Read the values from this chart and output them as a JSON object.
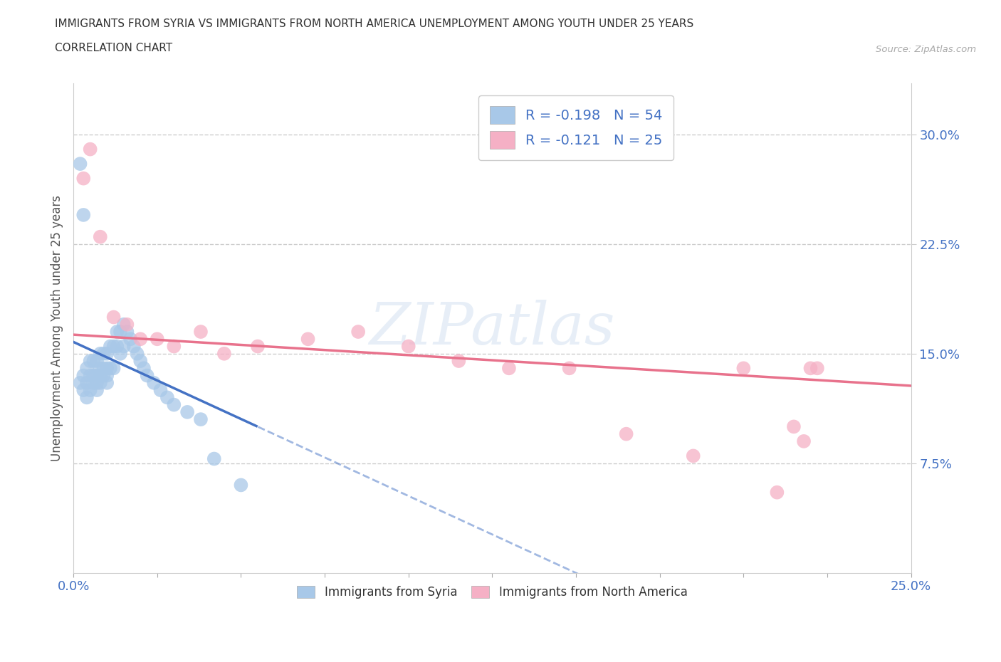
{
  "title_line1": "IMMIGRANTS FROM SYRIA VS IMMIGRANTS FROM NORTH AMERICA UNEMPLOYMENT AMONG YOUTH UNDER 25 YEARS",
  "title_line2": "CORRELATION CHART",
  "source": "Source: ZipAtlas.com",
  "xlabel_bottom_syria": "Immigrants from Syria",
  "xlabel_bottom_na": "Immigrants from North America",
  "ylabel": "Unemployment Among Youth under 25 years",
  "xlim": [
    0.0,
    0.25
  ],
  "ylim": [
    0.0,
    0.335
  ],
  "xtick_positions": [
    0.0,
    0.025,
    0.05,
    0.075,
    0.1,
    0.125,
    0.15,
    0.175,
    0.2,
    0.225,
    0.25
  ],
  "xtick_labels": [
    "0.0%",
    "",
    "",
    "",
    "",
    "",
    "",
    "",
    "",
    "",
    "25.0%"
  ],
  "ytick_positions": [
    0.075,
    0.15,
    0.225,
    0.3
  ],
  "ytick_labels": [
    "7.5%",
    "15.0%",
    "22.5%",
    "30.0%"
  ],
  "syria_R": -0.198,
  "syria_N": 54,
  "na_R": -0.121,
  "na_N": 25,
  "syria_scatter_color": "#a8c8e8",
  "na_scatter_color": "#f5b0c5",
  "syria_line_color": "#4472c4",
  "na_line_color": "#e8728c",
  "watermark_text": "ZIPatlas",
  "syria_x": [
    0.002,
    0.003,
    0.003,
    0.004,
    0.004,
    0.004,
    0.005,
    0.005,
    0.005,
    0.006,
    0.006,
    0.006,
    0.007,
    0.007,
    0.007,
    0.007,
    0.008,
    0.008,
    0.008,
    0.008,
    0.009,
    0.009,
    0.009,
    0.01,
    0.01,
    0.01,
    0.01,
    0.011,
    0.011,
    0.012,
    0.012,
    0.013,
    0.013,
    0.014,
    0.014,
    0.015,
    0.015,
    0.016,
    0.017,
    0.018,
    0.019,
    0.02,
    0.021,
    0.022,
    0.024,
    0.026,
    0.028,
    0.03,
    0.034,
    0.038,
    0.002,
    0.003,
    0.042,
    0.05
  ],
  "syria_y": [
    0.13,
    0.125,
    0.135,
    0.12,
    0.13,
    0.14,
    0.125,
    0.135,
    0.145,
    0.13,
    0.135,
    0.145,
    0.125,
    0.13,
    0.135,
    0.145,
    0.13,
    0.135,
    0.14,
    0.15,
    0.135,
    0.14,
    0.15,
    0.13,
    0.135,
    0.14,
    0.15,
    0.14,
    0.155,
    0.14,
    0.155,
    0.155,
    0.165,
    0.15,
    0.165,
    0.155,
    0.17,
    0.165,
    0.16,
    0.155,
    0.15,
    0.145,
    0.14,
    0.135,
    0.13,
    0.125,
    0.12,
    0.115,
    0.11,
    0.105,
    0.28,
    0.245,
    0.078,
    0.06
  ],
  "na_x": [
    0.003,
    0.005,
    0.008,
    0.012,
    0.016,
    0.02,
    0.025,
    0.03,
    0.038,
    0.045,
    0.055,
    0.07,
    0.085,
    0.1,
    0.115,
    0.13,
    0.148,
    0.165,
    0.185,
    0.2,
    0.21,
    0.215,
    0.218,
    0.22,
    0.222
  ],
  "na_y": [
    0.27,
    0.29,
    0.23,
    0.175,
    0.17,
    0.16,
    0.16,
    0.155,
    0.165,
    0.15,
    0.155,
    0.16,
    0.165,
    0.155,
    0.145,
    0.14,
    0.14,
    0.095,
    0.08,
    0.14,
    0.055,
    0.1,
    0.09,
    0.14,
    0.14
  ],
  "syria_line_solid_end": 0.055,
  "na_line_solid_end": 0.25,
  "syria_trendline_start_y": 0.158,
  "syria_trendline_end_x": 0.055,
  "syria_trendline_end_y": 0.1,
  "na_trendline_start_y": 0.163,
  "na_trendline_end_y": 0.128
}
